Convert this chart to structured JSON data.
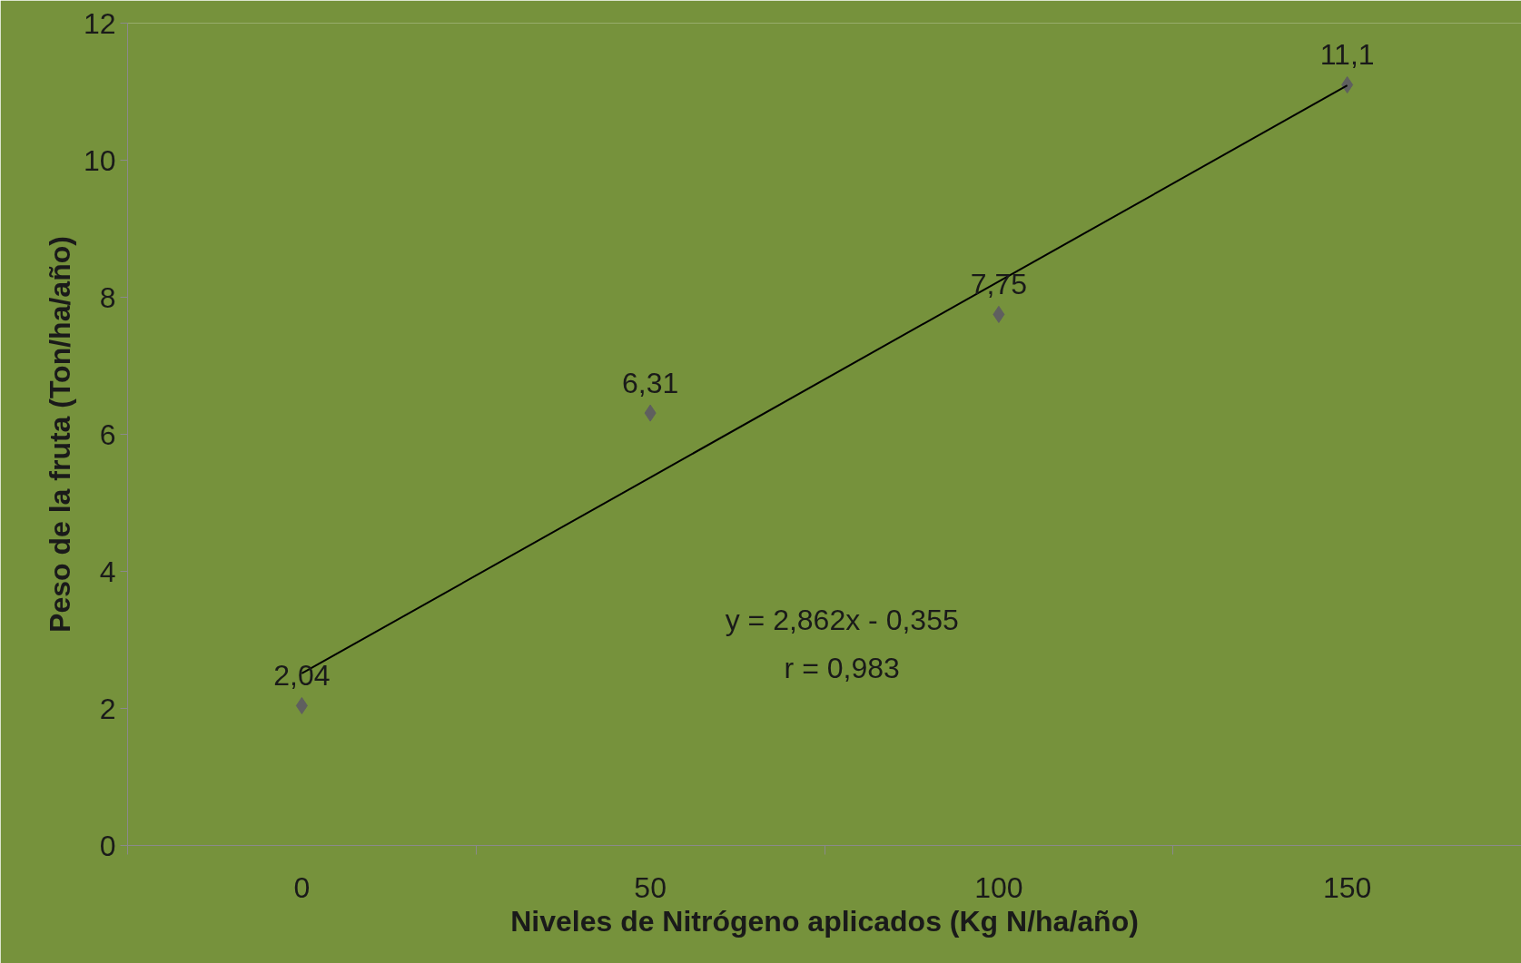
{
  "chart_data": {
    "type": "scatter",
    "xlabel": "Niveles de Nitrógeno aplicados (Kg N/ha/año)",
    "ylabel": "Peso de la fruta (Ton/ha/año)",
    "categories": [
      "0",
      "50",
      "100",
      "150"
    ],
    "series": [
      {
        "color": "#5f5f5f",
        "marker": "diamond",
        "values": [
          2.04,
          6.31,
          7.75,
          11.1
        ],
        "value_labels": [
          "2,04",
          "6,31",
          "7,75",
          "11,1"
        ]
      },
      {
        "type": "line",
        "color": "#000000",
        "line_style": "solid",
        "values": [
          2.51,
          5.37,
          8.23,
          11.09
        ]
      }
    ],
    "ylim": [
      0,
      12
    ],
    "yticks": [
      0,
      2,
      4,
      6,
      8,
      10,
      12
    ],
    "grid": false,
    "annotations": [
      "y = 2,862x - 0,355",
      "r = 0,983"
    ]
  }
}
